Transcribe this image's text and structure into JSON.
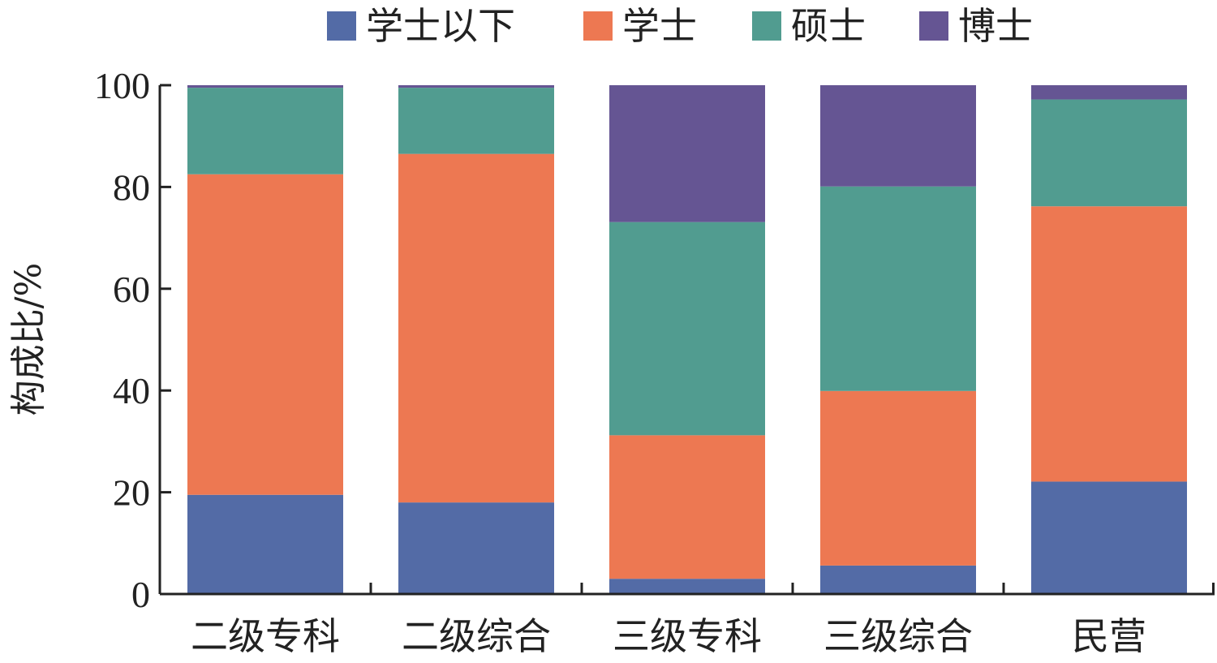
{
  "chart_data": {
    "type": "bar",
    "stacked": true,
    "categories": [
      "二级专科",
      "二级综合",
      "三级专科",
      "三级综合",
      "民营"
    ],
    "series": [
      {
        "name": "学士以下",
        "color": "#536ba6",
        "values": [
          19.5,
          18.0,
          3.0,
          5.6,
          22.1
        ]
      },
      {
        "name": "学士",
        "color": "#ed7852",
        "values": [
          63.0,
          68.5,
          28.2,
          34.3,
          54.1
        ]
      },
      {
        "name": "硕士",
        "color": "#519c90",
        "values": [
          17.0,
          13.0,
          41.9,
          40.2,
          21.0
        ]
      },
      {
        "name": "博士",
        "color": "#655593",
        "values": [
          0.5,
          0.5,
          26.9,
          19.9,
          2.8
        ]
      }
    ],
    "ylabel": "构成比/%",
    "ylim": [
      0,
      100
    ],
    "yticks": [
      0,
      20,
      40,
      60,
      80,
      100
    ],
    "legend_position": "top",
    "grid": false
  }
}
